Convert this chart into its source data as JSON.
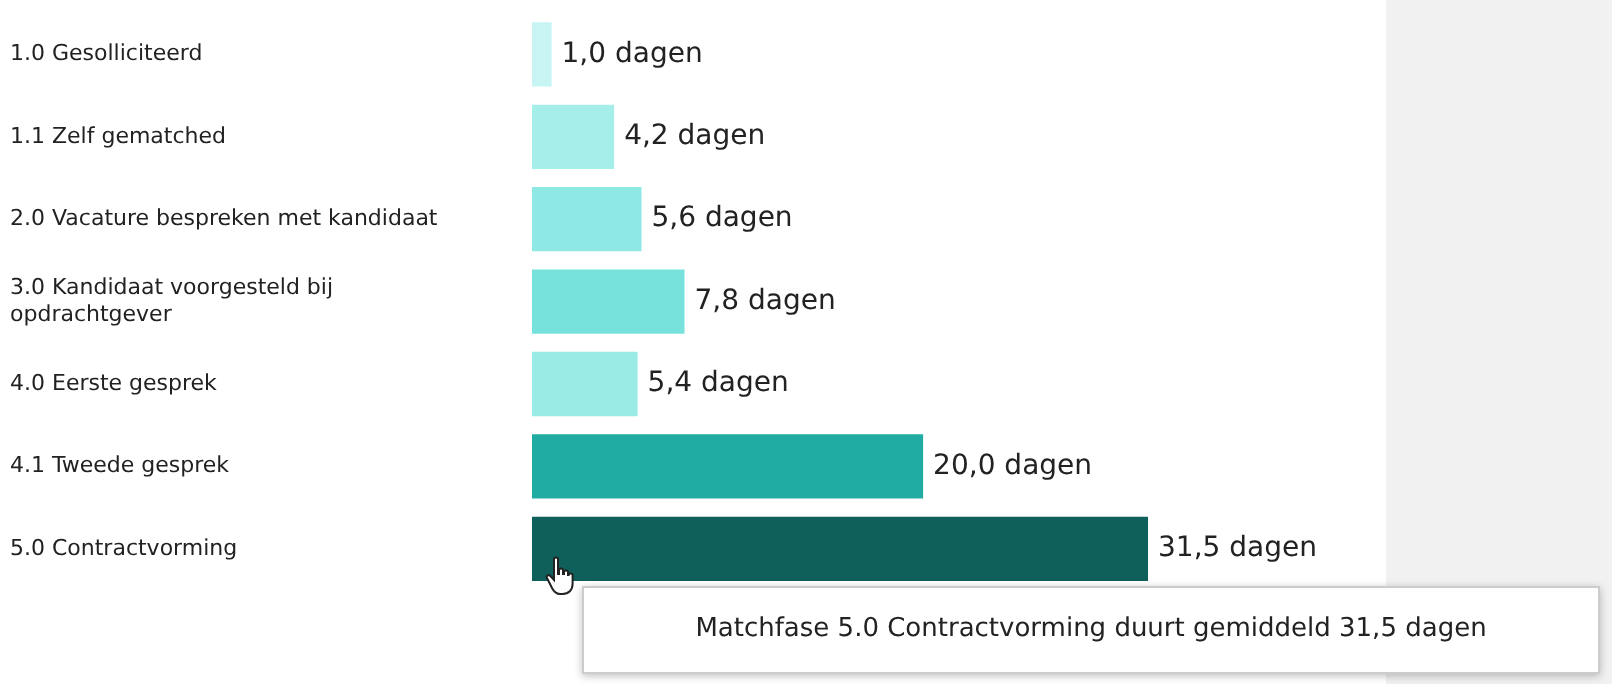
{
  "chart_data": {
    "type": "bar",
    "orientation": "horizontal",
    "categories": [
      "1.0 Gesolliciteerd",
      "1.1 Zelf gematched",
      "2.0 Vacature bespreken met kandidaat",
      "3.0 Kandidaat voorgesteld bij opdrachtgever",
      "4.0 Eerste gesprek",
      "4.1 Tweede gesprek",
      "5.0 Contractvorming"
    ],
    "values": [
      1.0,
      4.2,
      5.6,
      7.8,
      5.4,
      20.0,
      31.5
    ],
    "colors": [
      "#c6f5f4",
      "#a5eeea",
      "#8ee8e3",
      "#77e2dc",
      "#9aebe6",
      "#20aca2",
      "#0f5f5a"
    ],
    "value_labels": [
      "1,0 dagen",
      "4,2 dagen",
      "5,6 dagen",
      "7,8 dagen",
      "5,4 dagen",
      "20,0 dagen",
      "31,5 dagen"
    ],
    "annotations": [
      "Matchfase 5.0 Contractvorming duurt gemiddeld 31,5 dagen"
    ],
    "tick_labels": "y"
  }
}
